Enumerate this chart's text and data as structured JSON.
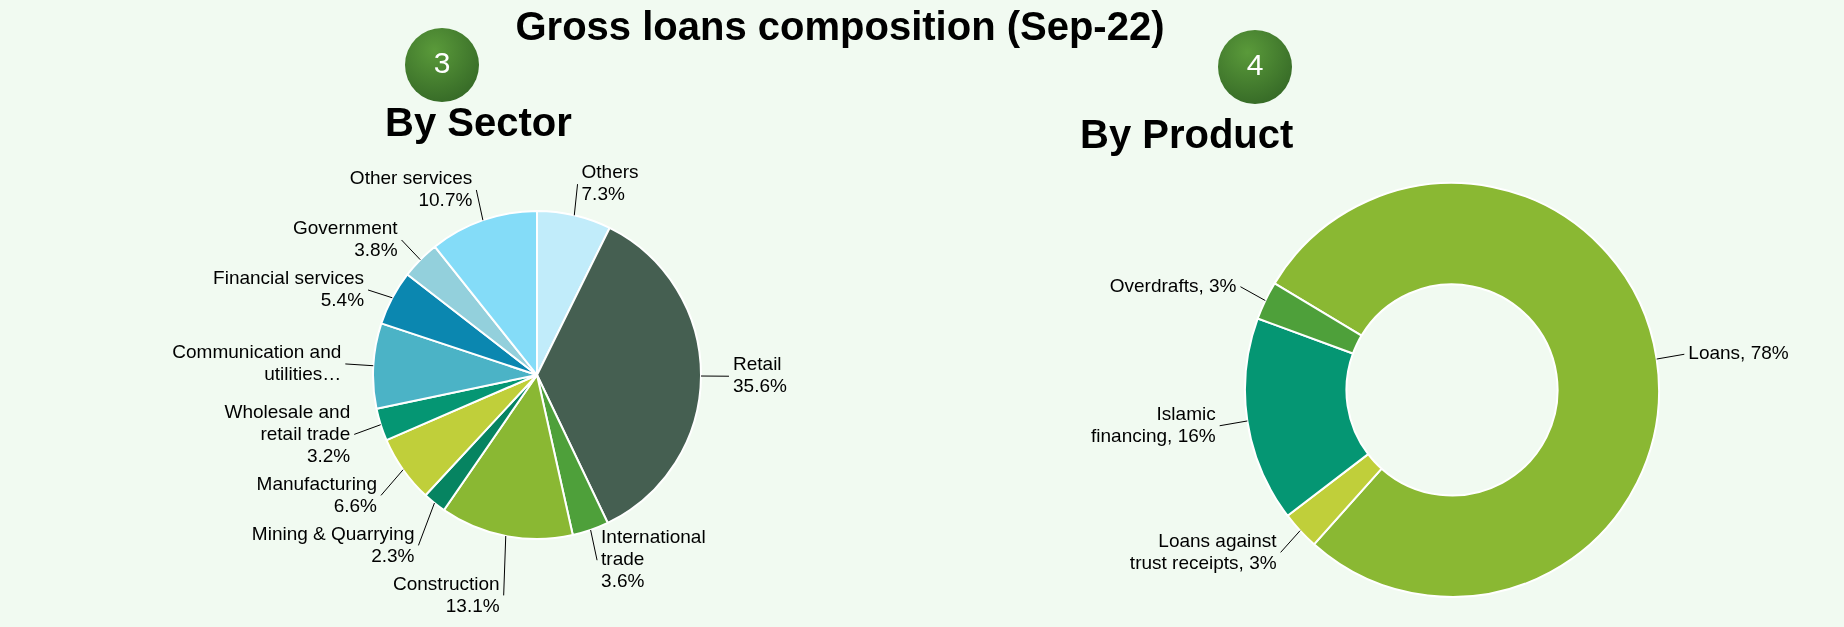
{
  "chart_data": [
    {
      "type": "pie",
      "title": "Gross loans composition (Sep-22)",
      "subtitle": "By Sector",
      "annotations": [
        "3"
      ],
      "categories": [
        "Others",
        "Retail",
        "International trade",
        "Construction",
        "Mining & Quarrying",
        "Manufacturing",
        "Wholesale and retail trade",
        "Communication and utilities…",
        "Financial services",
        "Government",
        "Other services"
      ],
      "values": [
        7.3,
        35.6,
        3.6,
        13.1,
        2.3,
        6.6,
        3.2,
        8.4,
        5.4,
        3.8,
        10.7
      ],
      "value_labels": [
        "7.3%",
        "35.6%",
        "3.6%",
        "13.1%",
        "2.3%",
        "6.6%",
        "3.2%",
        null,
        "5.4%",
        "3.8%",
        "10.7%"
      ],
      "colors": [
        "#c1ecfa",
        "#455f51",
        "#4ea03a",
        "#8ab833",
        "#068461",
        "#c0cf3a",
        "#059673",
        "#4bb3c6",
        "#0b87b0",
        "#93d0dc",
        "#84dcf8"
      ],
      "legend": false
    },
    {
      "type": "donut",
      "title": "By Product",
      "annotations": [
        "4"
      ],
      "categories": [
        "Loans",
        "Loans against trust receipts",
        "Islamic financing",
        "Overdrafts"
      ],
      "values": [
        78,
        3,
        16,
        3
      ],
      "value_labels": [
        "78%",
        "3%",
        "16%",
        "3%"
      ],
      "colors": [
        "#8ab833",
        "#c0cf3a",
        "#059673",
        "#4ea03a"
      ],
      "legend": false
    }
  ]
}
